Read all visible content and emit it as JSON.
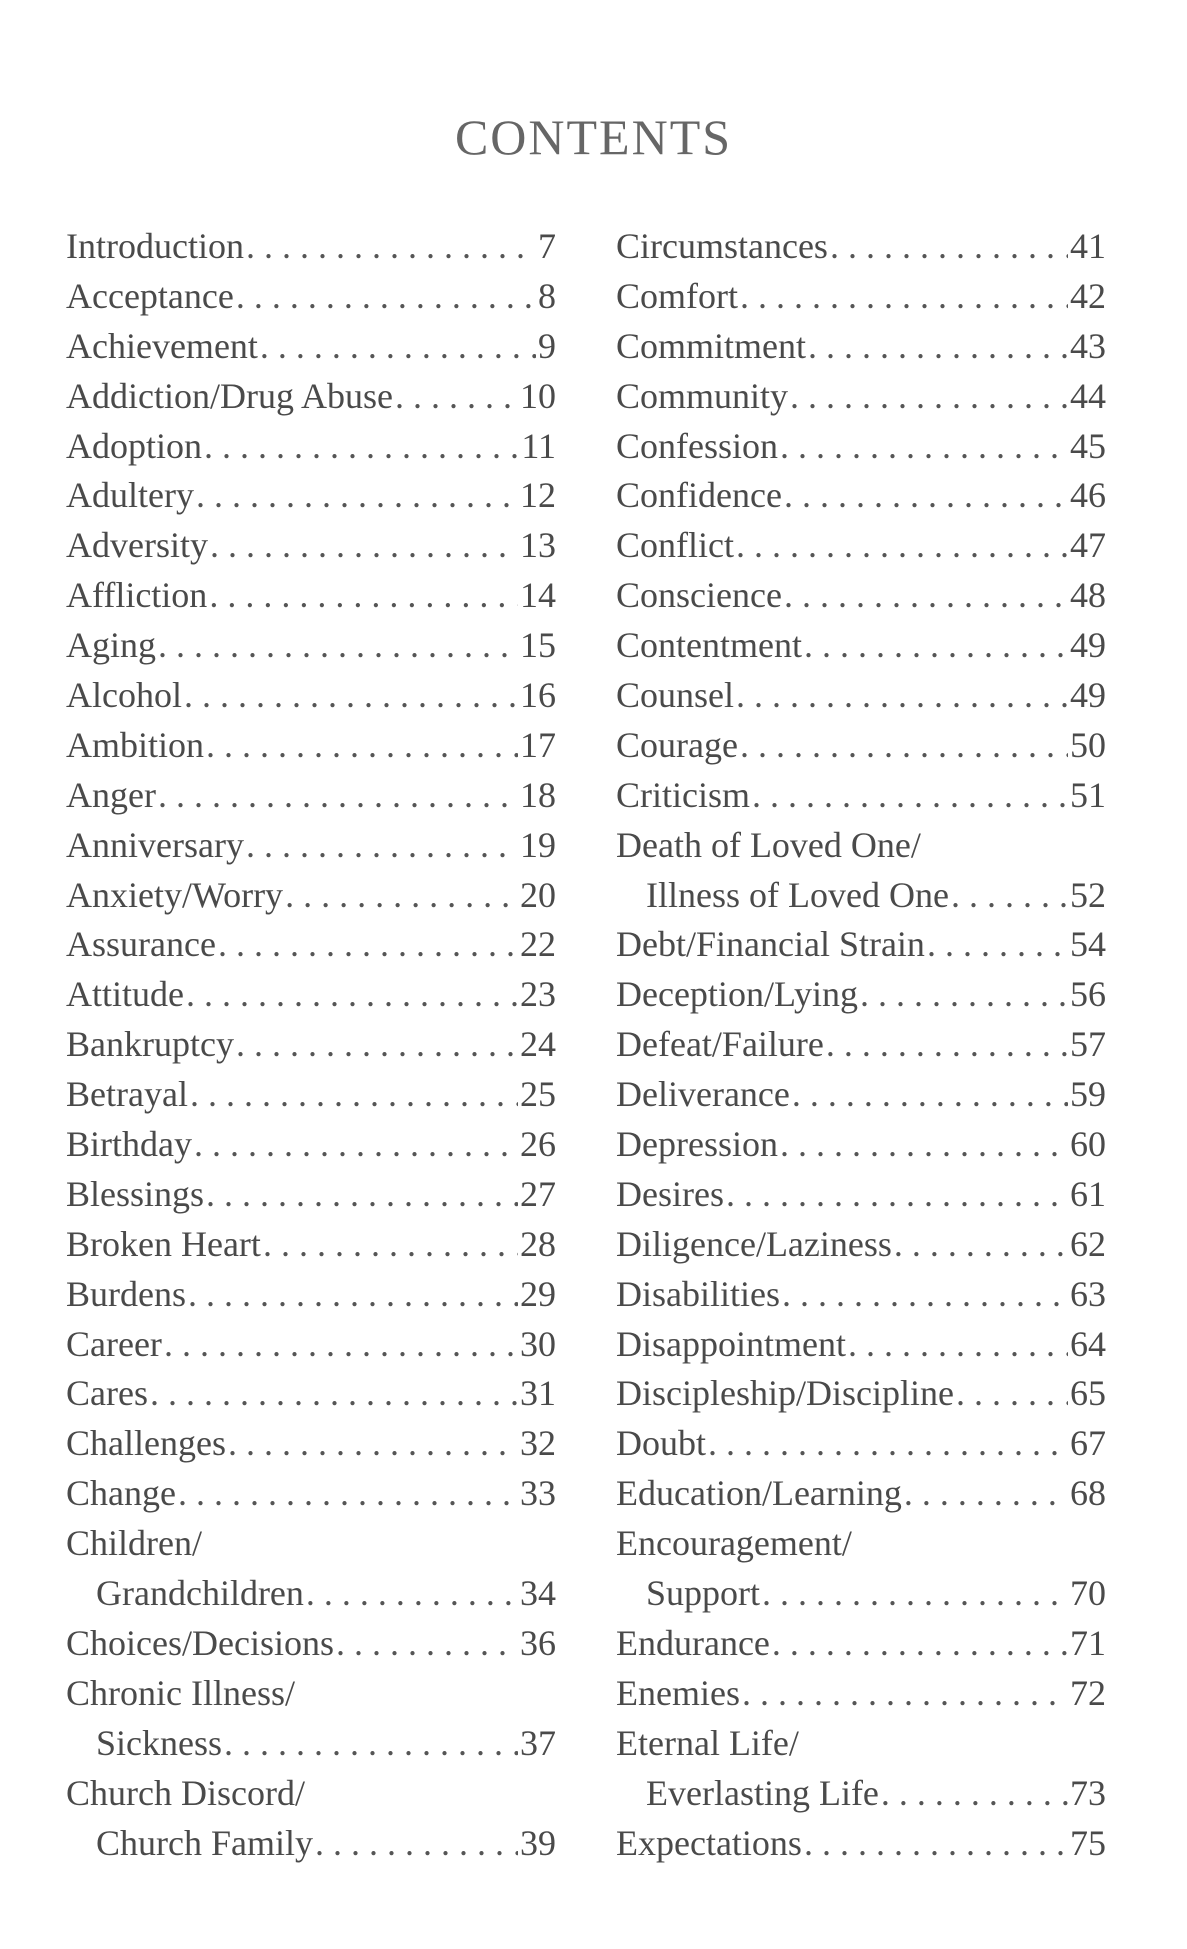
{
  "title": "CONTENTS",
  "left_column": [
    {
      "label": "Introduction",
      "page": "7"
    },
    {
      "label": "Acceptance",
      "page": "8"
    },
    {
      "label": "Achievement",
      "page": "9"
    },
    {
      "label": "Addiction/Drug Abuse",
      "page": "10"
    },
    {
      "label": "Adoption",
      "page": "11"
    },
    {
      "label": "Adultery",
      "page": "12"
    },
    {
      "label": "Adversity",
      "page": "13"
    },
    {
      "label": "Affliction",
      "page": "14"
    },
    {
      "label": "Aging",
      "page": "15"
    },
    {
      "label": "Alcohol",
      "page": "16"
    },
    {
      "label": "Ambition",
      "page": "17"
    },
    {
      "label": "Anger",
      "page": "18"
    },
    {
      "label": "Anniversary",
      "page": "19"
    },
    {
      "label": "Anxiety/Worry",
      "page": "20"
    },
    {
      "label": "Assurance",
      "page": "22"
    },
    {
      "label": "Attitude",
      "page": "23"
    },
    {
      "label": "Bankruptcy",
      "page": "24"
    },
    {
      "label": "Betrayal",
      "page": "25"
    },
    {
      "label": "Birthday",
      "page": "26"
    },
    {
      "label": "Blessings",
      "page": "27"
    },
    {
      "label": "Broken Heart",
      "page": "28"
    },
    {
      "label": "Burdens",
      "page": "29"
    },
    {
      "label": "Career",
      "page": "30"
    },
    {
      "label": "Cares",
      "page": "31"
    },
    {
      "label": "Challenges",
      "page": "32"
    },
    {
      "label": "Change",
      "page": "33"
    },
    {
      "label": "Children/",
      "page": ""
    },
    {
      "label": "Grandchildren",
      "page": "34",
      "indent": true
    },
    {
      "label": "Choices/Decisions",
      "page": "36"
    },
    {
      "label": "Chronic Illness/",
      "page": ""
    },
    {
      "label": "Sickness",
      "page": "37",
      "indent": true
    },
    {
      "label": "Church Discord/",
      "page": ""
    },
    {
      "label": "Church Family",
      "page": "39",
      "indent": true
    }
  ],
  "right_column": [
    {
      "label": "Circumstances",
      "page": "41"
    },
    {
      "label": "Comfort",
      "page": "42"
    },
    {
      "label": "Commitment",
      "page": "43"
    },
    {
      "label": "Community",
      "page": "44"
    },
    {
      "label": "Confession",
      "page": "45"
    },
    {
      "label": "Confidence",
      "page": "46"
    },
    {
      "label": "Conflict",
      "page": "47"
    },
    {
      "label": "Conscience",
      "page": "48"
    },
    {
      "label": "Contentment",
      "page": "49"
    },
    {
      "label": "Counsel",
      "page": "49"
    },
    {
      "label": "Courage",
      "page": "50"
    },
    {
      "label": "Criticism",
      "page": "51"
    },
    {
      "label": "Death of Loved One/",
      "page": ""
    },
    {
      "label": "Illness of Loved One",
      "page": "52",
      "indent": true
    },
    {
      "label": "Debt/Financial Strain",
      "page": "54"
    },
    {
      "label": "Deception/Lying",
      "page": "56"
    },
    {
      "label": "Defeat/Failure",
      "page": "57"
    },
    {
      "label": "Deliverance",
      "page": "59"
    },
    {
      "label": "Depression",
      "page": "60"
    },
    {
      "label": "Desires",
      "page": "61"
    },
    {
      "label": "Diligence/Laziness",
      "page": "62"
    },
    {
      "label": "Disabilities",
      "page": "63"
    },
    {
      "label": "Disappointment",
      "page": "64"
    },
    {
      "label": "Discipleship/Discipline",
      "page": "65"
    },
    {
      "label": "Doubt",
      "page": "67"
    },
    {
      "label": "Education/Learning",
      "page": "68"
    },
    {
      "label": "Encouragement/",
      "page": ""
    },
    {
      "label": "Support",
      "page": "70",
      "indent": true
    },
    {
      "label": "Endurance",
      "page": "71"
    },
    {
      "label": "Enemies",
      "page": "72"
    },
    {
      "label": "Eternal Life/",
      "page": ""
    },
    {
      "label": "Everlasting Life",
      "page": "73",
      "indent": true
    },
    {
      "label": "Expectations",
      "page": "75"
    }
  ]
}
